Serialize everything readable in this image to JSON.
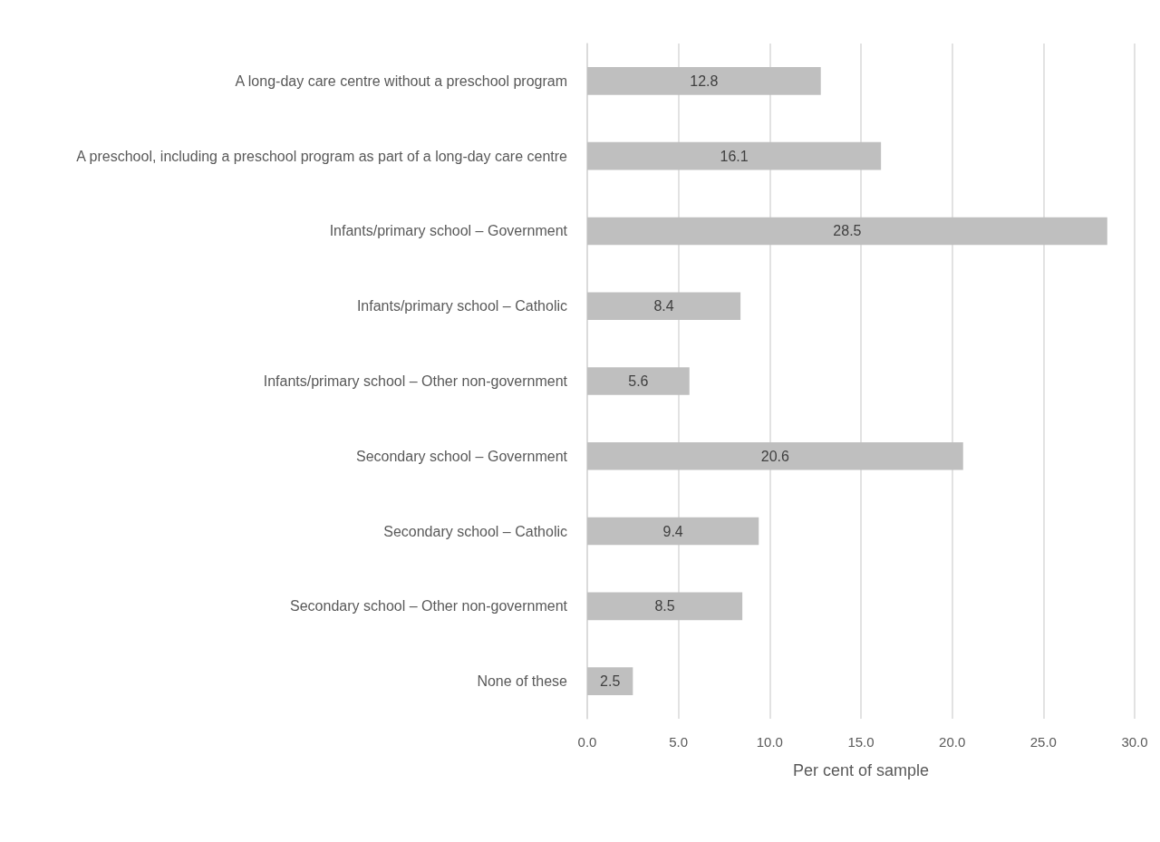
{
  "chart_data": {
    "type": "bar",
    "orientation": "horizontal",
    "xlabel": "Per cent of sample",
    "categories": [
      "A long-day care centre without a preschool program",
      "A preschool, including a preschool program as part of a long-day care centre",
      "Infants/primary school – Government",
      "Infants/primary school – Catholic",
      "Infants/primary school – Other non-government",
      "Secondary school – Government",
      "Secondary school – Catholic",
      "Secondary school – Other non-government",
      "None of these"
    ],
    "values": [
      12.8,
      16.1,
      28.5,
      8.4,
      5.6,
      20.6,
      9.4,
      8.5,
      2.5
    ],
    "color": "#bfbfbf",
    "data_labels": true,
    "grid": "x",
    "xlim": [
      0,
      30
    ],
    "xticks": [
      {
        "value": 0,
        "label": "0.0"
      },
      {
        "value": 5,
        "label": "5.0"
      },
      {
        "value": 10,
        "label": "10.0"
      },
      {
        "value": 15,
        "label": "15.0"
      },
      {
        "value": 20,
        "label": "20.0"
      },
      {
        "value": 25,
        "label": "25.0"
      },
      {
        "value": 30,
        "label": "30.0"
      }
    ]
  }
}
